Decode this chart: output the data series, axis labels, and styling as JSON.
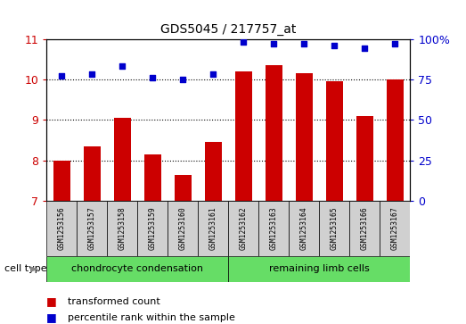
{
  "title": "GDS5045 / 217757_at",
  "samples": [
    "GSM1253156",
    "GSM1253157",
    "GSM1253158",
    "GSM1253159",
    "GSM1253160",
    "GSM1253161",
    "GSM1253162",
    "GSM1253163",
    "GSM1253164",
    "GSM1253165",
    "GSM1253166",
    "GSM1253167"
  ],
  "transformed_count": [
    8.0,
    8.35,
    9.05,
    8.15,
    7.65,
    8.45,
    10.2,
    10.35,
    10.15,
    9.95,
    9.1,
    10.0
  ],
  "percentile_rank": [
    77,
    78,
    83,
    76,
    75,
    78,
    98,
    97,
    97,
    96,
    94,
    97
  ],
  "bar_color": "#cc0000",
  "dot_color": "#0000cc",
  "ylim_left": [
    7,
    11
  ],
  "ylim_right": [
    0,
    100
  ],
  "yticks_left": [
    7,
    8,
    9,
    10,
    11
  ],
  "yticks_right": [
    0,
    25,
    50,
    75,
    100
  ],
  "ytick_labels_right": [
    "0",
    "25",
    "50",
    "75",
    "100%"
  ],
  "cell_type_groups": [
    {
      "label": "chondrocyte condensation",
      "start": 0,
      "end": 6,
      "color": "#66dd66"
    },
    {
      "label": "remaining limb cells",
      "start": 6,
      "end": 12,
      "color": "#66dd66"
    }
  ],
  "cell_type_label": "cell type",
  "legend_items": [
    {
      "label": "transformed count",
      "color": "#cc0000"
    },
    {
      "label": "percentile rank within the sample",
      "color": "#0000cc"
    }
  ],
  "bar_width": 0.55,
  "tick_area_bg": "#d0d0d0",
  "plot_bg": "#ffffff",
  "border_color": "#000000"
}
